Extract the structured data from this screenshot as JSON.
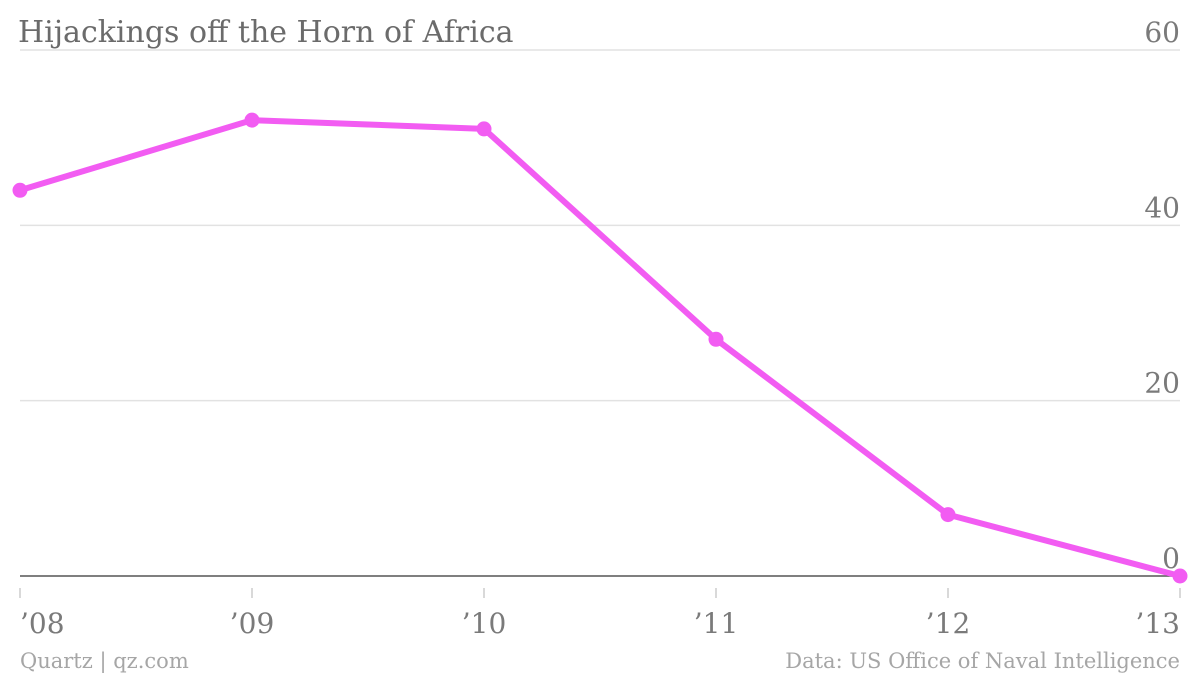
{
  "chart_data": {
    "type": "line",
    "title": "Hijackings off the Horn of Africa",
    "categories": [
      "’08",
      "’09",
      "’10",
      "’11",
      "’12",
      "’13"
    ],
    "series": [
      {
        "values": [
          44,
          52,
          51,
          27,
          7,
          0
        ]
      }
    ],
    "ylim": [
      0,
      60
    ],
    "yticks": [
      0,
      20,
      40,
      60
    ],
    "y_axis_side": "right",
    "grid": true,
    "line_color": "#f25cf2"
  },
  "footer": {
    "credit": "Quartz | qz.com",
    "source": "Data: US Office of Naval Intelligence"
  }
}
